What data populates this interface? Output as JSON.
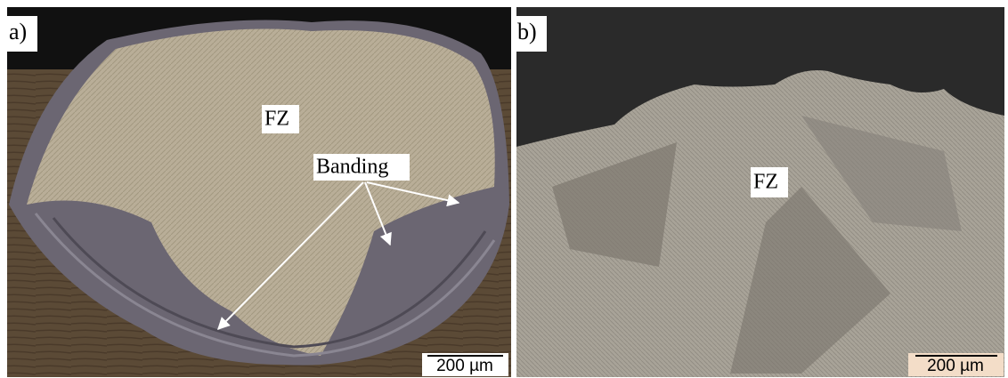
{
  "panels": [
    {
      "label": "a)",
      "annotations": [
        "FZ",
        "Banding"
      ],
      "scale_bar": "200 µm"
    },
    {
      "label": "b)",
      "annotations": [
        "FZ"
      ],
      "scale_bar": "200 µm"
    }
  ]
}
